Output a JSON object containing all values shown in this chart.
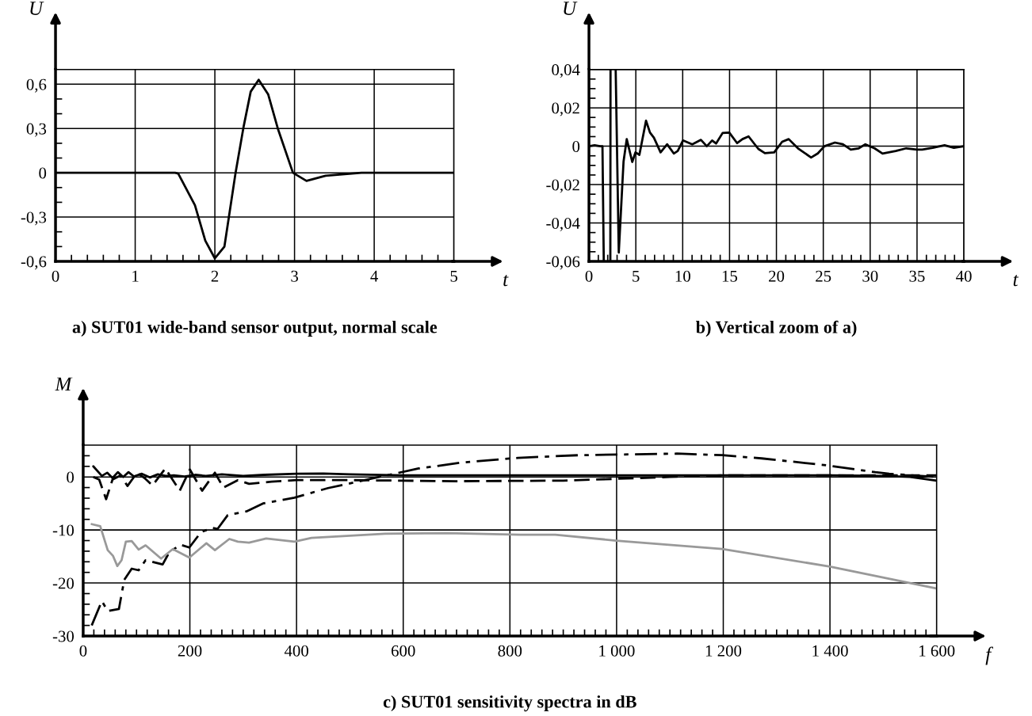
{
  "chart_data": [
    {
      "type": "line",
      "title": "a) SUT01 wide-band sensor output, normal scale",
      "xlabel": "t",
      "ylabel": "U",
      "grid": true,
      "xlim": [
        0,
        5
      ],
      "ylim": [
        -0.6,
        0.7
      ],
      "xticks": [
        0,
        1,
        2,
        3,
        4,
        5,
        {
          "value": 0.2,
          "label": null
        },
        {
          "value": 0.4,
          "label": null
        },
        {
          "value": 0.6,
          "label": null
        },
        {
          "value": 0.8,
          "label": null
        },
        {
          "value": 1.2,
          "label": null
        },
        {
          "value": 1.4,
          "label": null
        },
        {
          "value": 1.6,
          "label": null
        },
        {
          "value": 1.8,
          "label": null
        },
        {
          "value": 2.2,
          "label": null
        },
        {
          "value": 2.4,
          "label": null
        },
        {
          "value": 2.6,
          "label": null
        },
        {
          "value": 2.8,
          "label": null
        },
        {
          "value": 3.2,
          "label": null
        },
        {
          "value": 3.4,
          "label": null
        },
        {
          "value": 3.6,
          "label": null
        },
        {
          "value": 3.8,
          "label": null
        },
        {
          "value": 4.2,
          "label": null
        },
        {
          "value": 4.4,
          "label": null
        },
        {
          "value": 4.6,
          "label": null
        },
        {
          "value": 4.8,
          "label": null
        }
      ],
      "yticks": [
        {
          "value": -0.6,
          "label": "-0,6"
        },
        {
          "value": -0.3,
          "label": "-0,3"
        },
        0,
        {
          "value": 0.3,
          "label": "0,3"
        },
        {
          "value": 0.6,
          "label": "0,6"
        },
        {
          "value": -0.5,
          "label": null
        },
        {
          "value": -0.4,
          "label": null
        },
        {
          "value": -0.2,
          "label": null
        },
        {
          "value": -0.1,
          "label": null
        },
        {
          "value": 0.1,
          "label": null
        },
        {
          "value": 0.2,
          "label": null
        },
        {
          "value": 0.4,
          "label": null
        },
        {
          "value": 0.5,
          "label": null
        }
      ],
      "series": [
        {
          "color": "#000000",
          "line_style": "solid",
          "x": [
            0,
            1.0,
            1.5,
            1.54,
            1.75,
            1.88,
            2.0,
            2.12,
            2.26,
            2.36,
            2.45,
            2.55,
            2.67,
            2.79,
            2.98,
            3.15,
            3.39,
            3.84,
            5
          ],
          "values": [
            0,
            0,
            0,
            -0.005,
            -0.22,
            -0.46,
            -0.58,
            -0.5,
            0,
            0.31,
            0.55,
            0.63,
            0.53,
            0.3,
            0,
            -0.055,
            -0.02,
            0,
            0
          ]
        }
      ]
    },
    {
      "type": "line",
      "title": "b) Vertical zoom of a)",
      "xlabel": "t",
      "ylabel": "U",
      "grid": true,
      "xlim": [
        0,
        40
      ],
      "ylim": [
        -0.06,
        0.04
      ],
      "xticks": [
        0,
        5,
        10,
        15,
        20,
        25,
        30,
        35,
        40,
        {
          "value": 1,
          "label": null
        },
        {
          "value": 2,
          "label": null
        },
        {
          "value": 3,
          "label": null
        },
        {
          "value": 4,
          "label": null
        },
        {
          "value": 6,
          "label": null
        },
        {
          "value": 7,
          "label": null
        },
        {
          "value": 8,
          "label": null
        },
        {
          "value": 9,
          "label": null
        },
        {
          "value": 11,
          "label": null
        },
        {
          "value": 12,
          "label": null
        },
        {
          "value": 13,
          "label": null
        },
        {
          "value": 14,
          "label": null
        },
        {
          "value": 16,
          "label": null
        },
        {
          "value": 17,
          "label": null
        },
        {
          "value": 18,
          "label": null
        },
        {
          "value": 19,
          "label": null
        },
        {
          "value": 21,
          "label": null
        },
        {
          "value": 22,
          "label": null
        },
        {
          "value": 23,
          "label": null
        },
        {
          "value": 24,
          "label": null
        },
        {
          "value": 26,
          "label": null
        },
        {
          "value": 27,
          "label": null
        },
        {
          "value": 28,
          "label": null
        },
        {
          "value": 29,
          "label": null
        },
        {
          "value": 31,
          "label": null
        },
        {
          "value": 32,
          "label": null
        },
        {
          "value": 33,
          "label": null
        },
        {
          "value": 34,
          "label": null
        },
        {
          "value": 36,
          "label": null
        },
        {
          "value": 37,
          "label": null
        },
        {
          "value": 38,
          "label": null
        },
        {
          "value": 39,
          "label": null
        }
      ],
      "yticks": [
        {
          "value": -0.06,
          "label": "-0,06"
        },
        {
          "value": -0.04,
          "label": "-0,04"
        },
        {
          "value": -0.02,
          "label": "-0,02"
        },
        0,
        {
          "value": 0.02,
          "label": "0,02"
        },
        {
          "value": 0.04,
          "label": "0,04"
        },
        {
          "value": -0.055,
          "label": null
        },
        {
          "value": -0.05,
          "label": null
        },
        {
          "value": -0.045,
          "label": null
        },
        {
          "value": -0.035,
          "label": null
        },
        {
          "value": -0.03,
          "label": null
        },
        {
          "value": -0.025,
          "label": null
        },
        {
          "value": -0.015,
          "label": null
        },
        {
          "value": -0.01,
          "label": null
        },
        {
          "value": -0.005,
          "label": null
        },
        {
          "value": 0.005,
          "label": null
        },
        {
          "value": 0.01,
          "label": null
        },
        {
          "value": 0.015,
          "label": null
        },
        {
          "value": 0.025,
          "label": null
        },
        {
          "value": 0.03,
          "label": null
        },
        {
          "value": 0.035,
          "label": null
        }
      ],
      "series": [
        {
          "color": "#000000",
          "line_style": "solid",
          "x": [
            0,
            0.6,
            1.2,
            1.44,
            1.58,
            1.9,
            2.28,
            2.3,
            2.5,
            2.85,
            3.18,
            3.69,
            4.03,
            4.62,
            4.96,
            5.38,
            6.09,
            6.51,
            6.93,
            7.64,
            8.34,
            9.05,
            9.47,
            10.03,
            11.02,
            11.95,
            12.57,
            13.14,
            13.56,
            14.26,
            14.97,
            15.81,
            16.38,
            17.03,
            18.07,
            18.77,
            19.76,
            20.61,
            21.31,
            22.3,
            23.7,
            24.41,
            25.12,
            26.24,
            27.09,
            27.93,
            28.78,
            29.49,
            30.47,
            31.32,
            32.73,
            33.85,
            34.98,
            35.55,
            36.67,
            37.94,
            38.93,
            40
          ],
          "values": [
            0,
            0.0005,
            0,
            0,
            -0.06,
            null,
            -0.06,
            0.04,
            null,
            0.04,
            -0.0554,
            -0.008,
            0.0037,
            -0.0082,
            -0.0032,
            -0.0045,
            0.0133,
            0.0071,
            0.0044,
            -0.0032,
            0.001,
            -0.0038,
            -0.0025,
            0.003,
            0.001,
            0.0033,
            0,
            0.003,
            0.0014,
            0.0069,
            0.0071,
            0.0016,
            0.0037,
            0.0051,
            -0.0014,
            -0.0036,
            -0.0032,
            0.0023,
            0.0037,
            -0.0011,
            -0.0059,
            -0.0038,
            0,
            0.0019,
            0.001,
            -0.0018,
            -0.0011,
            0.001,
            -0.0011,
            -0.0038,
            -0.0025,
            -0.0011,
            -0.0018,
            -0.0018,
            -0.0008,
            0.0005,
            -0.0008,
            0
          ]
        }
      ]
    },
    {
      "type": "line",
      "title": "c) SUT01 sensitivity spectra in dB",
      "xlabel": "f",
      "ylabel": "M",
      "grid": true,
      "xlim": [
        0,
        1600
      ],
      "ylim": [
        -30,
        6
      ],
      "xticks": [
        0,
        200,
        400,
        600,
        800,
        {
          "value": 1000,
          "label": "1 000"
        },
        {
          "value": 1200,
          "label": "1 200"
        },
        {
          "value": 1400,
          "label": "1 400"
        },
        {
          "value": 1600,
          "label": "1 600"
        },
        {
          "value": 20,
          "label": null
        },
        {
          "value": 40,
          "label": null
        },
        {
          "value": 60,
          "label": null
        },
        {
          "value": 80,
          "label": null
        },
        {
          "value": 100,
          "label": null
        },
        {
          "value": 120,
          "label": null
        },
        {
          "value": 140,
          "label": null
        },
        {
          "value": 160,
          "label": null
        },
        {
          "value": 180,
          "label": null
        },
        {
          "value": 220,
          "label": null
        },
        {
          "value": 240,
          "label": null
        },
        {
          "value": 260,
          "label": null
        },
        {
          "value": 280,
          "label": null
        },
        {
          "value": 300,
          "label": null
        },
        {
          "value": 320,
          "label": null
        },
        {
          "value": 340,
          "label": null
        },
        {
          "value": 360,
          "label": null
        },
        {
          "value": 380,
          "label": null
        },
        {
          "value": 420,
          "label": null
        },
        {
          "value": 440,
          "label": null
        },
        {
          "value": 460,
          "label": null
        },
        {
          "value": 480,
          "label": null
        },
        {
          "value": 500,
          "label": null
        },
        {
          "value": 520,
          "label": null
        },
        {
          "value": 540,
          "label": null
        },
        {
          "value": 560,
          "label": null
        },
        {
          "value": 580,
          "label": null
        },
        {
          "value": 620,
          "label": null
        },
        {
          "value": 640,
          "label": null
        },
        {
          "value": 660,
          "label": null
        },
        {
          "value": 680,
          "label": null
        },
        {
          "value": 700,
          "label": null
        },
        {
          "value": 720,
          "label": null
        },
        {
          "value": 740,
          "label": null
        },
        {
          "value": 760,
          "label": null
        },
        {
          "value": 780,
          "label": null
        },
        {
          "value": 820,
          "label": null
        },
        {
          "value": 840,
          "label": null
        },
        {
          "value": 860,
          "label": null
        },
        {
          "value": 880,
          "label": null
        },
        {
          "value": 900,
          "label": null
        },
        {
          "value": 920,
          "label": null
        },
        {
          "value": 940,
          "label": null
        },
        {
          "value": 960,
          "label": null
        },
        {
          "value": 980,
          "label": null
        },
        {
          "value": 1020,
          "label": null
        },
        {
          "value": 1040,
          "label": null
        },
        {
          "value": 1060,
          "label": null
        },
        {
          "value": 1080,
          "label": null
        },
        {
          "value": 1100,
          "label": null
        },
        {
          "value": 1120,
          "label": null
        },
        {
          "value": 1140,
          "label": null
        },
        {
          "value": 1160,
          "label": null
        },
        {
          "value": 1180,
          "label": null
        },
        {
          "value": 1220,
          "label": null
        },
        {
          "value": 1240,
          "label": null
        },
        {
          "value": 1260,
          "label": null
        },
        {
          "value": 1280,
          "label": null
        },
        {
          "value": 1300,
          "label": null
        },
        {
          "value": 1320,
          "label": null
        },
        {
          "value": 1340,
          "label": null
        },
        {
          "value": 1360,
          "label": null
        },
        {
          "value": 1380,
          "label": null
        },
        {
          "value": 1420,
          "label": null
        },
        {
          "value": 1440,
          "label": null
        },
        {
          "value": 1460,
          "label": null
        },
        {
          "value": 1480,
          "label": null
        },
        {
          "value": 1500,
          "label": null
        },
        {
          "value": 1520,
          "label": null
        },
        {
          "value": 1540,
          "label": null
        },
        {
          "value": 1560,
          "label": null
        },
        {
          "value": 1580,
          "label": null
        }
      ],
      "yticks": [
        -30,
        -20,
        -10,
        0,
        {
          "value": -28,
          "label": null
        },
        {
          "value": -26,
          "label": null
        },
        {
          "value": -24,
          "label": null
        },
        {
          "value": -22,
          "label": null
        },
        {
          "value": -18,
          "label": null
        },
        {
          "value": -16,
          "label": null
        },
        {
          "value": -14,
          "label": null
        },
        {
          "value": -12,
          "label": null
        },
        {
          "value": -8,
          "label": null
        },
        {
          "value": -6,
          "label": null
        },
        {
          "value": -4,
          "label": null
        },
        {
          "value": -2,
          "label": null
        },
        {
          "value": 2,
          "label": null
        },
        {
          "value": 4,
          "label": null
        }
      ],
      "series": [
        {
          "color": "#000000",
          "line_style": "solid",
          "x": [
            19,
            35,
            45,
            55,
            65,
            75,
            85,
            95,
            110,
            125,
            140,
            155,
            170,
            190,
            210,
            230,
            260,
            300,
            340,
            400,
            450,
            500,
            600,
            800,
            1000,
            1200,
            1400,
            1500,
            1550,
            1600
          ],
          "values": [
            2.0,
            0.2,
            0.8,
            -0.2,
            0.9,
            0,
            0.9,
            0.1,
            0.6,
            -0.1,
            0.5,
            0.2,
            0.3,
            0.1,
            0.4,
            0.2,
            0.5,
            0.2,
            0.4,
            0.6,
            0.65,
            0.5,
            0.3,
            0.3,
            0.3,
            0.3,
            0.3,
            0.2,
            0,
            -0.7
          ]
        },
        {
          "color": "#000000",
          "line_style": "dashed",
          "x": [
            19,
            30,
            43,
            55,
            70,
            83,
            101,
            115,
            130,
            154,
            181,
            200,
            223,
            247,
            263,
            290,
            311,
            353,
            400,
            500,
            700,
            900,
            1100,
            1200,
            1400,
            1600
          ],
          "values": [
            0,
            -0.5,
            -4.2,
            -0.5,
            0.3,
            -1.7,
            0.8,
            -0.2,
            -1.6,
            1.6,
            -2.6,
            1.4,
            -2.6,
            0.8,
            -2.0,
            -0.6,
            -1.3,
            -0.9,
            -0.6,
            -0.6,
            -0.8,
            -0.7,
            0,
            0.3,
            0.3,
            0.3
          ]
        },
        {
          "color": "#000000",
          "line_style": "dashdot",
          "x": [
            16,
            35,
            46,
            67,
            77,
            91,
            104,
            117,
            149,
            162,
            183,
            199,
            221,
            242,
            252,
            271,
            306,
            337,
            396,
            459,
            555,
            629,
            709,
            815,
            928,
            1113,
            1198,
            1272,
            1394,
            1485,
            1511,
            1599
          ],
          "values": [
            -28,
            -23.4,
            -25.3,
            -24.9,
            -19.4,
            -17.3,
            -17.6,
            -15.7,
            -16.5,
            -14.1,
            -12.8,
            -13.3,
            -10.4,
            -9.6,
            -9.8,
            -7.2,
            -6.5,
            -5.0,
            -3.9,
            -2.1,
            0,
            1.6,
            2.7,
            3.6,
            4.1,
            4.4,
            4.1,
            3.5,
            2.2,
            0.9,
            0.6,
            0
          ]
        },
        {
          "color": "#999999",
          "line_style": "solid",
          "x": [
            16,
            32,
            46,
            56,
            64,
            72,
            80,
            91,
            104,
            117,
            146,
            168,
            199,
            231,
            247,
            274,
            290,
            311,
            343,
            396,
            428,
            566,
            682,
            820,
            885,
            999,
            1198,
            1400,
            1599
          ],
          "values": [
            -8.9,
            -9.3,
            -13.8,
            -14.9,
            -16.8,
            -15.7,
            -12.2,
            -12.1,
            -13.7,
            -12.9,
            -15.4,
            -13.6,
            -15.2,
            -12.5,
            -13.8,
            -11.7,
            -12.2,
            -12.4,
            -11.6,
            -12.2,
            -11.5,
            -10.7,
            -10.6,
            -10.9,
            -10.9,
            -12.0,
            -13.6,
            -16.9,
            -21.0
          ]
        }
      ]
    }
  ]
}
